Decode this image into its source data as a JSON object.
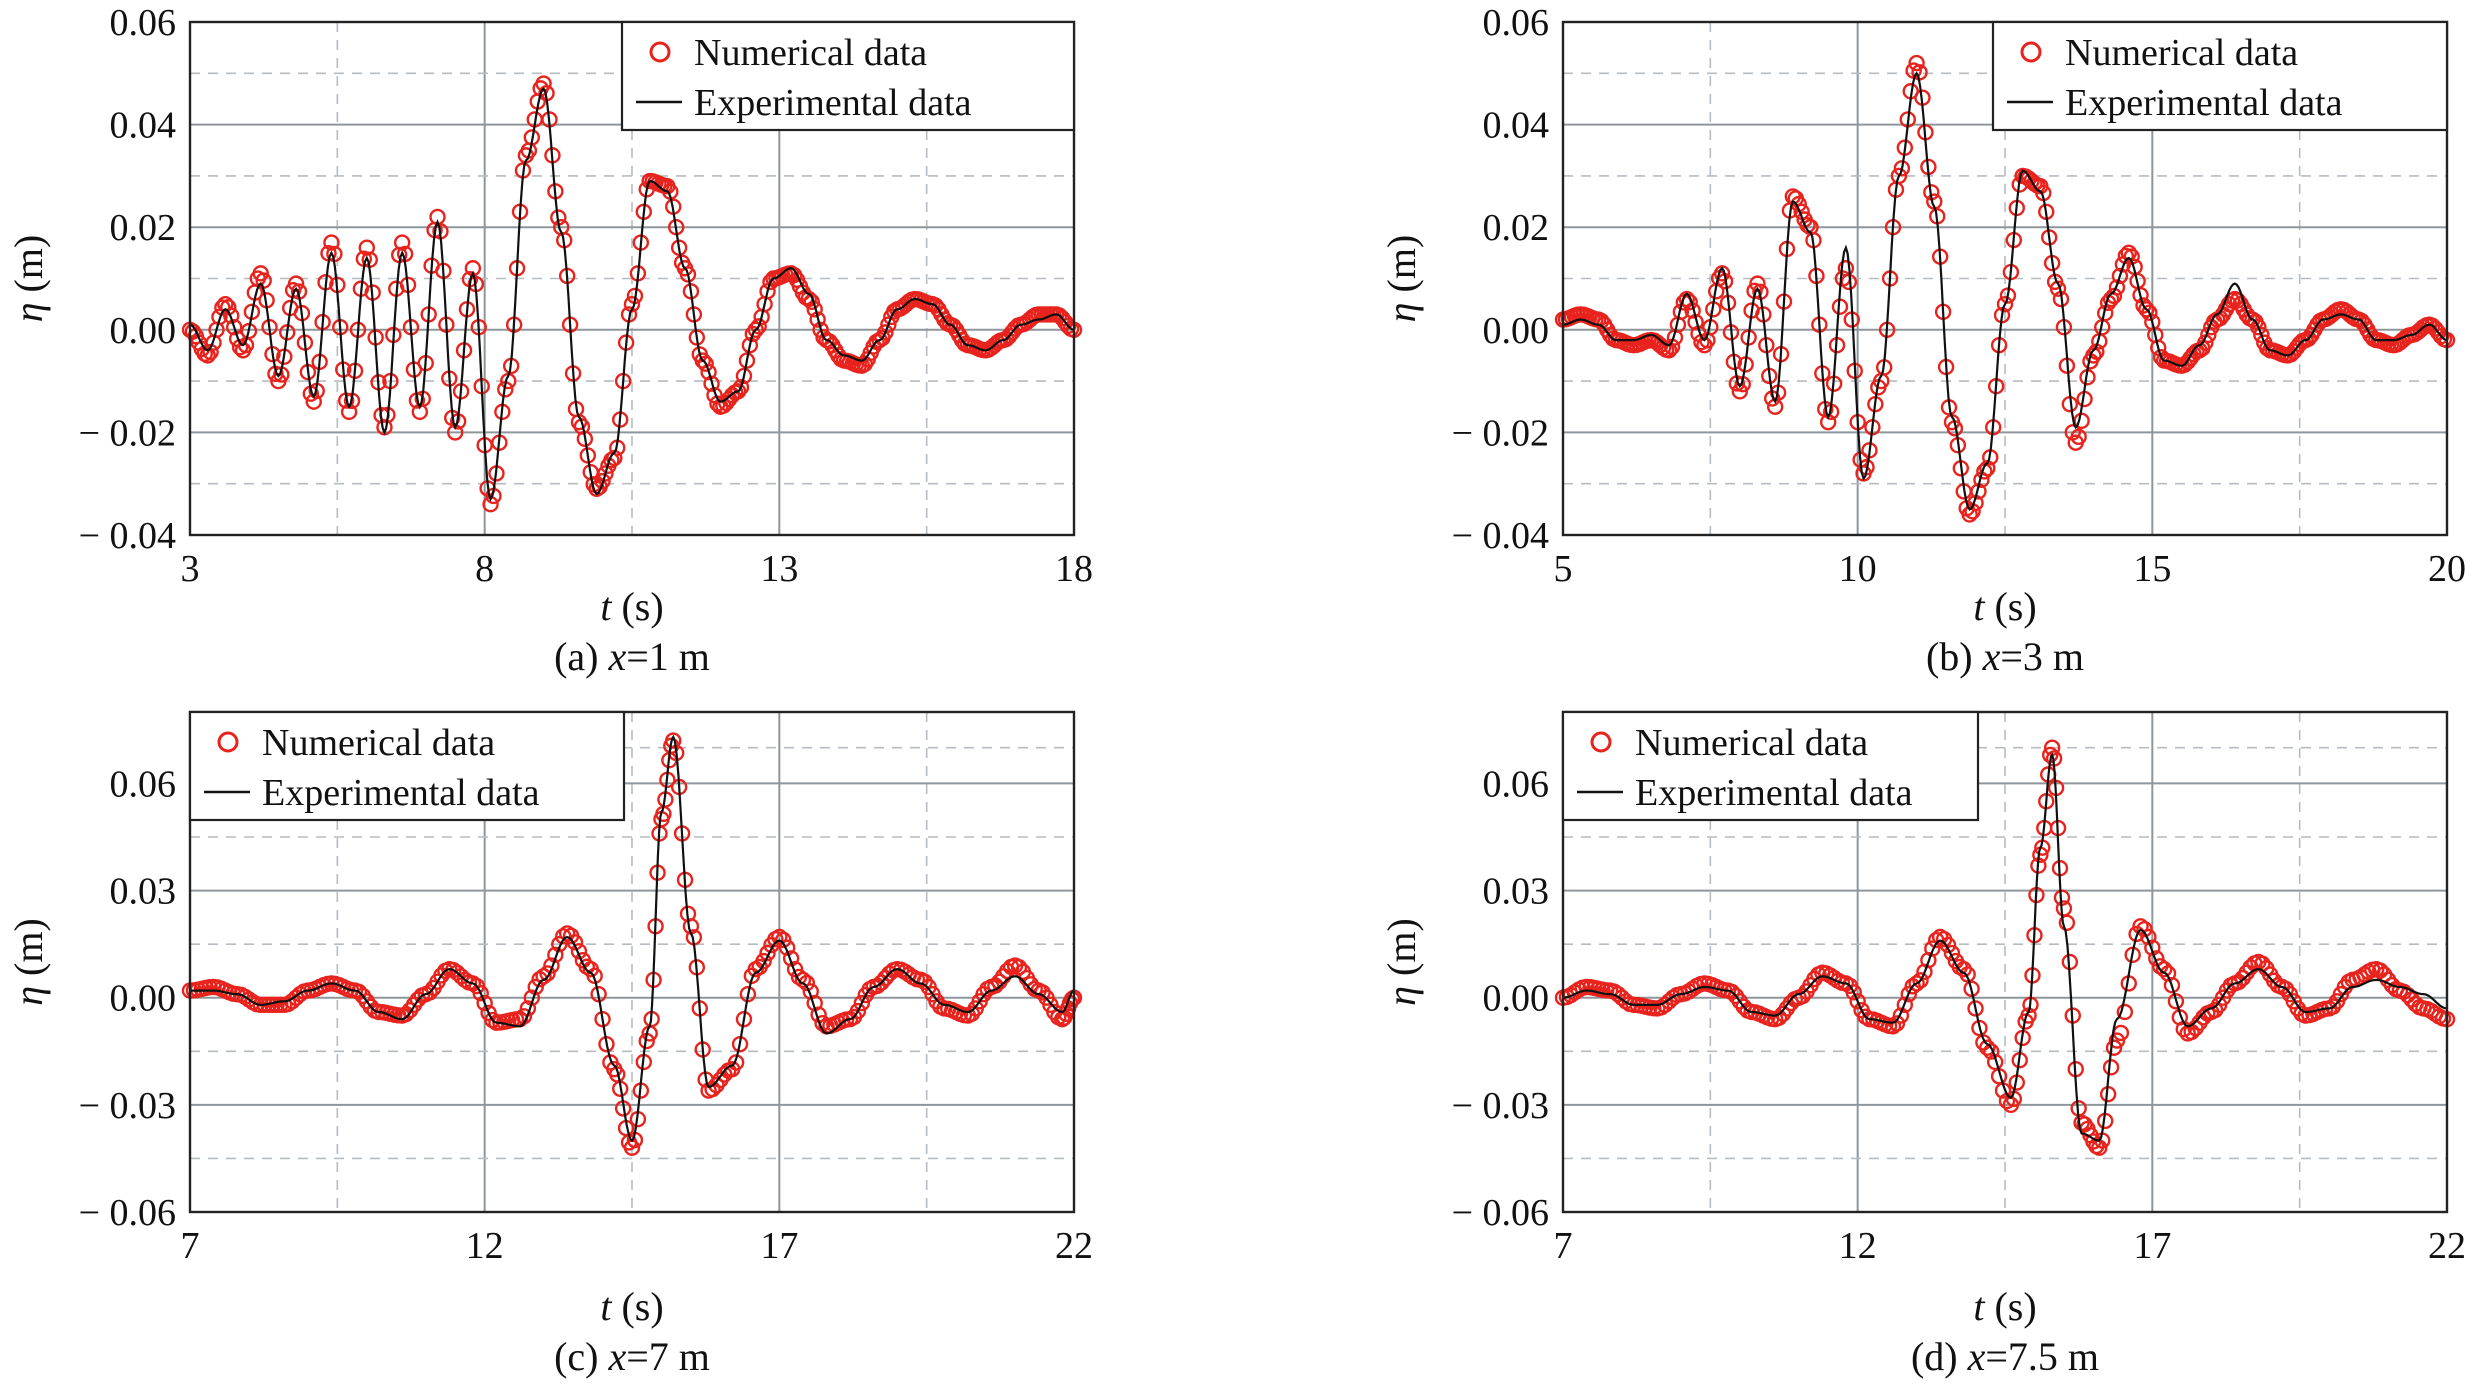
{
  "figure": {
    "panels": [
      {
        "caption_prefix": "(a) ",
        "caption_var": "x",
        "caption_rest": "=1 m",
        "xlabel_var": "t",
        "xlabel_unit": " (s)",
        "ylabel_var": "η",
        "ylabel_unit": " (m)",
        "legend": {
          "numerical": "Numerical data",
          "experimental": "Experimental data"
        }
      },
      {
        "caption_prefix": "(b) ",
        "caption_var": "x",
        "caption_rest": "=3 m",
        "xlabel_var": "t",
        "xlabel_unit": " (s)",
        "ylabel_var": "η",
        "ylabel_unit": " (m)",
        "legend": {
          "numerical": "Numerical data",
          "experimental": "Experimental data"
        }
      },
      {
        "caption_prefix": "(c) ",
        "caption_var": "x",
        "caption_rest": "=7 m",
        "xlabel_var": "t",
        "xlabel_unit": " (s)",
        "ylabel_var": "η",
        "ylabel_unit": " (m)",
        "legend": {
          "numerical": "Numerical data",
          "experimental": "Experimental data"
        }
      },
      {
        "caption_prefix": "(d) ",
        "caption_var": "x",
        "caption_rest": "=7.5 m",
        "xlabel_var": "t",
        "xlabel_unit": " (s)",
        "ylabel_var": "η",
        "ylabel_unit": " (m)",
        "legend": {
          "numerical": "Numerical data",
          "experimental": "Experimental data"
        }
      }
    ]
  },
  "chart_data": [
    {
      "type": "line",
      "title": "(a) x=1 m",
      "xlabel": "t (s)",
      "ylabel": "η (m)",
      "xlim": [
        3,
        18
      ],
      "ylim": [
        -0.04,
        0.06
      ],
      "xticks": [
        "3",
        "8",
        "13",
        "18"
      ],
      "yticks": [
        "0.06",
        "0.04",
        "0.02",
        "0.00",
        "− 0.02",
        "− 0.04"
      ],
      "grid": true,
      "legend_position": "top-right",
      "colors": {
        "numerical": "#e8231d",
        "experimental": "#111111"
      },
      "series": [
        {
          "name": "Numerical data",
          "marker": "circle",
          "x": [
            3.0,
            3.3,
            3.6,
            3.9,
            4.2,
            4.5,
            4.8,
            5.1,
            5.4,
            5.7,
            6.0,
            6.3,
            6.6,
            6.9,
            7.2,
            7.5,
            7.8,
            8.1,
            8.4,
            8.7,
            9.0,
            9.3,
            9.6,
            9.9,
            10.2,
            10.5,
            10.8,
            11.1,
            11.4,
            11.7,
            12.0,
            12.3,
            12.6,
            12.9,
            13.2,
            13.5,
            13.8,
            14.1,
            14.4,
            14.7,
            15.0,
            15.3,
            15.6,
            15.9,
            16.2,
            16.5,
            16.8,
            17.1,
            17.4,
            17.7,
            18.0
          ],
          "y": [
            0.0,
            -0.005,
            0.005,
            -0.004,
            0.011,
            -0.01,
            0.009,
            -0.014,
            0.017,
            -0.016,
            0.016,
            -0.019,
            0.017,
            -0.016,
            0.022,
            -0.02,
            0.012,
            -0.034,
            -0.01,
            0.034,
            0.048,
            0.02,
            -0.018,
            -0.031,
            -0.025,
            0.005,
            0.029,
            0.028,
            0.012,
            -0.006,
            -0.015,
            -0.012,
            0.0,
            0.01,
            0.011,
            0.006,
            -0.002,
            -0.006,
            -0.007,
            -0.002,
            0.004,
            0.006,
            0.005,
            0.001,
            -0.003,
            -0.004,
            -0.002,
            0.001,
            0.003,
            0.003,
            0.0
          ]
        },
        {
          "name": "Experimental data",
          "marker": "line",
          "x": [
            3.0,
            3.3,
            3.6,
            3.9,
            4.2,
            4.5,
            4.8,
            5.1,
            5.4,
            5.7,
            6.0,
            6.3,
            6.6,
            6.9,
            7.2,
            7.5,
            7.8,
            8.1,
            8.4,
            8.7,
            9.0,
            9.3,
            9.6,
            9.9,
            10.2,
            10.5,
            10.8,
            11.1,
            11.4,
            11.7,
            12.0,
            12.3,
            12.6,
            12.9,
            13.2,
            13.5,
            13.8,
            14.1,
            14.4,
            14.7,
            15.0,
            15.3,
            15.6,
            15.9,
            16.2,
            16.5,
            16.8,
            17.1,
            17.4,
            17.7,
            18.0
          ],
          "y": [
            0.001,
            -0.004,
            0.004,
            -0.003,
            0.009,
            -0.009,
            0.008,
            -0.013,
            0.015,
            -0.015,
            0.014,
            -0.02,
            0.015,
            -0.015,
            0.021,
            -0.019,
            0.011,
            -0.033,
            -0.009,
            0.033,
            0.047,
            0.019,
            -0.017,
            -0.032,
            -0.024,
            0.004,
            0.029,
            0.027,
            0.012,
            -0.006,
            -0.014,
            -0.012,
            0.0,
            0.01,
            0.012,
            0.007,
            -0.002,
            -0.005,
            -0.006,
            -0.002,
            0.004,
            0.006,
            0.005,
            0.001,
            -0.003,
            -0.004,
            -0.002,
            0.001,
            0.002,
            0.003,
            0.0
          ]
        }
      ]
    },
    {
      "type": "line",
      "title": "(b) x=3 m",
      "xlabel": "t (s)",
      "ylabel": "η (m)",
      "xlim": [
        5,
        20
      ],
      "ylim": [
        -0.04,
        0.06
      ],
      "xticks": [
        "5",
        "10",
        "15",
        "20"
      ],
      "yticks": [
        "0.06",
        "0.04",
        "0.02",
        "0.00",
        "− 0.02",
        "− 0.04"
      ],
      "grid": true,
      "legend_position": "top-right",
      "colors": {
        "numerical": "#e8231d",
        "experimental": "#111111"
      },
      "series": [
        {
          "name": "Numerical data",
          "marker": "circle",
          "x": [
            5.0,
            5.3,
            5.6,
            5.9,
            6.2,
            6.5,
            6.8,
            7.1,
            7.4,
            7.7,
            8.0,
            8.3,
            8.6,
            8.9,
            9.2,
            9.5,
            9.8,
            10.1,
            10.4,
            10.7,
            11.0,
            11.3,
            11.6,
            11.9,
            12.2,
            12.5,
            12.8,
            13.1,
            13.4,
            13.7,
            14.0,
            14.3,
            14.6,
            14.9,
            15.2,
            15.5,
            15.8,
            16.1,
            16.4,
            16.7,
            17.0,
            17.3,
            17.6,
            17.9,
            18.2,
            18.5,
            18.8,
            19.1,
            19.4,
            19.7,
            20.0
          ],
          "y": [
            0.002,
            0.003,
            0.002,
            -0.002,
            -0.003,
            -0.002,
            -0.004,
            0.006,
            -0.003,
            0.011,
            -0.012,
            0.009,
            -0.015,
            0.026,
            0.02,
            -0.018,
            0.012,
            -0.028,
            -0.01,
            0.03,
            0.052,
            0.025,
            -0.018,
            -0.036,
            -0.027,
            0.005,
            0.03,
            0.028,
            0.008,
            -0.022,
            -0.005,
            0.006,
            0.015,
            0.004,
            -0.006,
            -0.007,
            -0.004,
            0.002,
            0.006,
            0.002,
            -0.004,
            -0.005,
            -0.002,
            0.002,
            0.004,
            0.002,
            -0.002,
            -0.003,
            -0.001,
            0.001,
            -0.002
          ]
        },
        {
          "name": "Experimental data",
          "marker": "line",
          "x": [
            5.0,
            5.3,
            5.6,
            5.9,
            6.2,
            6.5,
            6.8,
            7.1,
            7.4,
            7.7,
            8.0,
            8.3,
            8.6,
            8.9,
            9.2,
            9.5,
            9.8,
            10.1,
            10.4,
            10.7,
            11.0,
            11.3,
            11.6,
            11.9,
            12.2,
            12.5,
            12.8,
            13.1,
            13.4,
            13.7,
            14.0,
            14.3,
            14.6,
            14.9,
            15.2,
            15.5,
            15.8,
            16.1,
            16.4,
            16.7,
            17.0,
            17.3,
            17.6,
            17.9,
            18.2,
            18.5,
            18.8,
            19.1,
            19.4,
            19.7,
            20.0
          ],
          "y": [
            0.001,
            0.002,
            0.001,
            -0.002,
            -0.002,
            -0.001,
            -0.003,
            0.007,
            -0.002,
            0.012,
            -0.011,
            0.008,
            -0.014,
            0.025,
            0.019,
            -0.017,
            0.016,
            -0.029,
            -0.009,
            0.03,
            0.05,
            0.024,
            -0.017,
            -0.035,
            -0.026,
            0.005,
            0.031,
            0.027,
            0.009,
            -0.019,
            -0.004,
            0.007,
            0.014,
            0.004,
            -0.006,
            -0.007,
            -0.003,
            0.003,
            0.009,
            0.002,
            -0.004,
            -0.005,
            -0.002,
            0.002,
            0.003,
            0.002,
            -0.002,
            -0.002,
            -0.001,
            0.001,
            -0.002
          ]
        }
      ]
    },
    {
      "type": "line",
      "title": "(c) x=7 m",
      "xlabel": "t (s)",
      "ylabel": "η (m)",
      "xlim": [
        7,
        22
      ],
      "ylim": [
        -0.06,
        0.08
      ],
      "xticks": [
        "7",
        "12",
        "17",
        "22"
      ],
      "yticks": [
        "0.06",
        "0.03",
        "0.00",
        "− 0.03",
        "− 0.06"
      ],
      "grid": true,
      "legend_position": "top-left",
      "colors": {
        "numerical": "#e8231d",
        "experimental": "#111111"
      },
      "series": [
        {
          "name": "Numerical data",
          "marker": "circle",
          "x": [
            7.0,
            7.4,
            7.8,
            8.2,
            8.6,
            9.0,
            9.4,
            9.8,
            10.2,
            10.6,
            11.0,
            11.4,
            11.8,
            12.2,
            12.6,
            13.0,
            13.4,
            13.8,
            14.2,
            14.5,
            14.8,
            15.0,
            15.2,
            15.5,
            15.8,
            16.2,
            16.6,
            17.0,
            17.4,
            17.8,
            18.2,
            18.6,
            19.0,
            19.4,
            19.8,
            20.2,
            20.6,
            21.0,
            21.4,
            21.8,
            22.0
          ],
          "y": [
            0.002,
            0.003,
            0.001,
            -0.002,
            -0.002,
            0.002,
            0.004,
            0.002,
            -0.004,
            -0.005,
            0.001,
            0.008,
            0.004,
            -0.007,
            -0.006,
            0.006,
            0.018,
            0.008,
            -0.02,
            -0.042,
            -0.01,
            0.05,
            0.072,
            0.02,
            -0.026,
            -0.02,
            0.008,
            0.017,
            0.005,
            -0.008,
            -0.006,
            0.003,
            0.008,
            0.005,
            -0.003,
            -0.005,
            0.003,
            0.009,
            0.002,
            -0.006,
            0.0
          ]
        },
        {
          "name": "Experimental data",
          "marker": "line",
          "x": [
            7.0,
            7.4,
            7.8,
            8.2,
            8.6,
            9.0,
            9.4,
            9.8,
            10.2,
            10.6,
            11.0,
            11.4,
            11.8,
            12.2,
            12.6,
            13.0,
            13.4,
            13.8,
            14.2,
            14.5,
            14.8,
            15.0,
            15.2,
            15.5,
            15.8,
            16.2,
            16.6,
            17.0,
            17.4,
            17.8,
            18.2,
            18.6,
            19.0,
            19.4,
            19.8,
            20.2,
            20.6,
            21.0,
            21.4,
            21.8,
            22.0
          ],
          "y": [
            0.002,
            0.002,
            0.001,
            -0.002,
            -0.001,
            0.002,
            0.004,
            0.002,
            -0.004,
            -0.006,
            0.001,
            0.008,
            0.004,
            -0.007,
            -0.008,
            0.005,
            0.017,
            0.007,
            -0.019,
            -0.04,
            -0.008,
            0.052,
            0.073,
            0.018,
            -0.025,
            -0.019,
            0.007,
            0.016,
            0.004,
            -0.01,
            -0.006,
            0.003,
            0.008,
            0.004,
            -0.002,
            -0.004,
            0.002,
            0.006,
            0.001,
            -0.004,
            0.002
          ]
        }
      ]
    },
    {
      "type": "line",
      "title": "(d) x=7.5 m",
      "xlabel": "t (s)",
      "ylabel": "η (m)",
      "xlim": [
        7,
        22
      ],
      "ylim": [
        -0.06,
        0.08
      ],
      "xticks": [
        "7",
        "12",
        "17",
        "22"
      ],
      "yticks": [
        "0.06",
        "0.03",
        "0.00",
        "− 0.03",
        "− 0.06"
      ],
      "grid": true,
      "legend_position": "top-left",
      "colors": {
        "numerical": "#e8231d",
        "experimental": "#111111"
      },
      "series": [
        {
          "name": "Numerical data",
          "marker": "circle",
          "x": [
            7.0,
            7.4,
            7.8,
            8.2,
            8.6,
            9.0,
            9.4,
            9.8,
            10.2,
            10.6,
            11.0,
            11.4,
            11.8,
            12.2,
            12.6,
            13.0,
            13.4,
            13.8,
            14.2,
            14.6,
            14.9,
            15.1,
            15.3,
            15.5,
            15.8,
            16.1,
            16.4,
            16.8,
            17.2,
            17.6,
            18.0,
            18.4,
            18.8,
            19.2,
            19.6,
            20.0,
            20.4,
            20.8,
            21.2,
            21.6,
            22.0
          ],
          "y": [
            0.0,
            0.003,
            0.002,
            -0.002,
            -0.003,
            0.001,
            0.004,
            0.002,
            -0.004,
            -0.006,
            0.0,
            0.007,
            0.004,
            -0.006,
            -0.008,
            0.004,
            0.017,
            0.008,
            -0.014,
            -0.03,
            -0.005,
            0.04,
            0.07,
            0.025,
            -0.035,
            -0.042,
            -0.012,
            0.02,
            0.008,
            -0.01,
            -0.004,
            0.004,
            0.01,
            0.003,
            -0.005,
            -0.003,
            0.005,
            0.008,
            0.002,
            -0.003,
            -0.006
          ]
        },
        {
          "name": "Experimental data",
          "marker": "line",
          "x": [
            7.0,
            7.4,
            7.8,
            8.2,
            8.6,
            9.0,
            9.4,
            9.8,
            10.2,
            10.6,
            11.0,
            11.4,
            11.8,
            12.2,
            12.6,
            13.0,
            13.4,
            13.8,
            14.2,
            14.6,
            14.9,
            15.1,
            15.3,
            15.5,
            15.8,
            16.1,
            16.4,
            16.8,
            17.2,
            17.6,
            18.0,
            18.4,
            18.8,
            19.2,
            19.6,
            20.0,
            20.4,
            20.8,
            21.2,
            21.6,
            22.0
          ],
          "y": [
            0.0,
            0.002,
            0.001,
            -0.002,
            -0.002,
            0.001,
            0.003,
            0.002,
            -0.004,
            -0.005,
            0.001,
            0.006,
            0.004,
            -0.006,
            -0.007,
            0.004,
            0.016,
            0.007,
            -0.013,
            -0.028,
            -0.004,
            0.042,
            0.068,
            0.02,
            -0.038,
            -0.04,
            -0.006,
            0.019,
            0.007,
            -0.008,
            -0.003,
            0.004,
            0.008,
            0.003,
            -0.004,
            -0.003,
            0.003,
            0.005,
            0.003,
            0.001,
            -0.003
          ]
        }
      ]
    }
  ]
}
